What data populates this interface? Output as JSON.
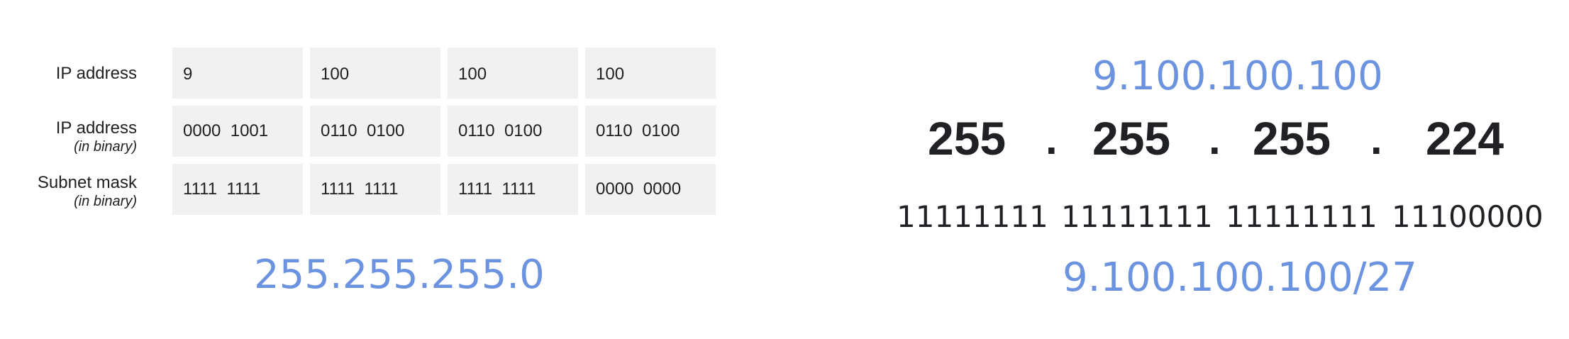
{
  "table": {
    "rows": [
      {
        "label": "IP address",
        "sublabel": "",
        "cells": [
          "9",
          "100",
          "100",
          "100"
        ]
      },
      {
        "label": "IP address",
        "sublabel": "(in binary)",
        "cells": [
          "0000  1001",
          "0110  0100",
          "0110  0100",
          "0110  0100"
        ]
      },
      {
        "label": "Subnet mask",
        "sublabel": "(in binary)",
        "cells": [
          "1111  1111",
          "1111  1111",
          "1111  1111",
          "0000  0000"
        ]
      }
    ]
  },
  "left_mask": "255.255.255.0",
  "right": {
    "ip": "9.100.100.100",
    "mask_octets": [
      "255",
      "255",
      "255",
      "224"
    ],
    "separator": ".",
    "mask_binary": [
      "11111111",
      "11111111",
      "11111111",
      "11100000"
    ],
    "cidr": "9.100.100.100/27"
  },
  "colors": {
    "accent_blue": "#6b93e0",
    "cell_bg": "#f1f1f1",
    "text": "#202124"
  }
}
